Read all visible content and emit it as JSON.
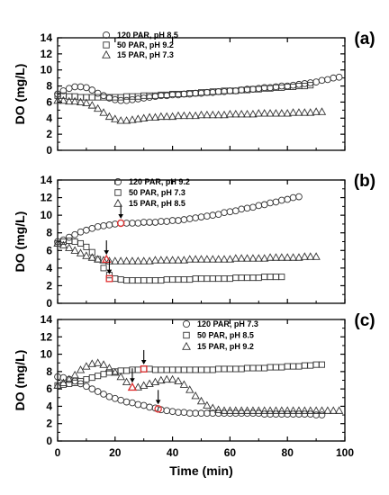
{
  "chart_data": [
    {
      "type": "scatter",
      "panel_label": "(a)",
      "ylabel": "DO (mg/L)",
      "xlim": [
        0,
        100
      ],
      "ylim": [
        0,
        14
      ],
      "yticks": [
        0,
        2,
        4,
        6,
        8,
        10,
        12,
        14
      ],
      "legend_position": "top-left",
      "series": [
        {
          "name": "120 PAR, pH 8.5",
          "marker": "circle",
          "x": [
            0,
            2,
            4,
            6,
            8,
            10,
            12,
            14,
            16,
            18,
            20,
            22,
            24,
            26,
            28,
            30,
            32,
            34,
            36,
            38,
            40,
            42,
            44,
            46,
            48,
            50,
            52,
            54,
            56,
            58,
            60,
            62,
            64,
            66,
            68,
            70,
            72,
            74,
            76,
            78,
            80,
            82,
            84,
            86,
            88,
            90,
            92,
            94,
            96,
            98
          ],
          "y": [
            7.0,
            7.4,
            7.7,
            7.9,
            7.9,
            7.8,
            7.5,
            7.1,
            6.8,
            6.5,
            6.3,
            6.2,
            6.2,
            6.3,
            6.4,
            6.5,
            6.6,
            6.7,
            6.8,
            6.8,
            6.9,
            6.9,
            7.0,
            7.0,
            7.1,
            7.1,
            7.2,
            7.2,
            7.3,
            7.3,
            7.4,
            7.4,
            7.5,
            7.6,
            7.6,
            7.7,
            7.8,
            7.8,
            7.9,
            8.0,
            8.0,
            8.1,
            8.2,
            8.3,
            8.4,
            8.5,
            8.7,
            8.8,
            9.0,
            9.1
          ]
        },
        {
          "name": "50 PAR, pH 9.2",
          "marker": "square",
          "x": [
            0,
            2,
            4,
            6,
            8,
            10,
            12,
            14,
            16,
            18,
            20,
            22,
            24,
            26,
            28,
            30,
            32,
            34,
            36,
            38,
            40,
            42,
            44,
            46,
            48,
            50,
            52,
            54,
            56,
            58,
            60,
            62,
            64,
            66,
            68,
            70,
            72,
            74,
            76,
            78,
            80,
            82,
            84,
            86,
            88
          ],
          "y": [
            6.8,
            6.8,
            6.7,
            6.7,
            6.6,
            6.6,
            6.6,
            6.6,
            6.6,
            6.6,
            6.6,
            6.6,
            6.7,
            6.7,
            6.7,
            6.8,
            6.8,
            6.8,
            6.9,
            6.9,
            7.0,
            7.0,
            7.0,
            7.1,
            7.1,
            7.2,
            7.2,
            7.3,
            7.3,
            7.4,
            7.4,
            7.4,
            7.5,
            7.5,
            7.6,
            7.6,
            7.7,
            7.7,
            7.8,
            7.8,
            7.9,
            7.9,
            8.0,
            8.0,
            8.1
          ]
        },
        {
          "name": "15 PAR, pH 7.3",
          "marker": "triangle",
          "x": [
            0,
            2,
            4,
            6,
            8,
            10,
            12,
            14,
            16,
            18,
            20,
            22,
            24,
            26,
            28,
            30,
            32,
            34,
            36,
            38,
            40,
            42,
            44,
            46,
            48,
            50,
            52,
            54,
            56,
            58,
            60,
            62,
            64,
            66,
            68,
            70,
            72,
            74,
            76,
            78,
            80,
            82,
            84,
            86,
            88,
            90,
            92
          ],
          "y": [
            6.2,
            6.2,
            6.1,
            6.1,
            6.0,
            5.9,
            5.6,
            5.2,
            4.7,
            4.2,
            3.9,
            3.7,
            3.7,
            3.8,
            3.9,
            4.0,
            4.1,
            4.1,
            4.2,
            4.2,
            4.2,
            4.3,
            4.3,
            4.3,
            4.3,
            4.4,
            4.4,
            4.4,
            4.4,
            4.4,
            4.5,
            4.5,
            4.5,
            4.5,
            4.5,
            4.6,
            4.6,
            4.6,
            4.6,
            4.6,
            4.6,
            4.7,
            4.7,
            4.7,
            4.7,
            4.8,
            4.8
          ]
        }
      ]
    },
    {
      "type": "scatter",
      "panel_label": "(b)",
      "ylabel": "DO (mg/L)",
      "xlim": [
        0,
        100
      ],
      "ylim": [
        0,
        14
      ],
      "yticks": [
        0,
        2,
        4,
        6,
        8,
        10,
        12,
        14
      ],
      "legend_position": "top-right",
      "series": [
        {
          "name": "120 PAR, pH 9.2",
          "marker": "circle",
          "x": [
            0,
            2,
            4,
            6,
            8,
            10,
            12,
            14,
            16,
            18,
            20,
            22,
            24,
            26,
            28,
            30,
            32,
            34,
            36,
            38,
            40,
            42,
            44,
            46,
            48,
            50,
            52,
            54,
            56,
            58,
            60,
            62,
            64,
            66,
            68,
            70,
            72,
            74,
            76,
            78,
            80,
            82,
            84
          ],
          "y": [
            7.0,
            7.2,
            7.5,
            7.8,
            8.1,
            8.3,
            8.5,
            8.7,
            8.8,
            8.9,
            9.0,
            9.1,
            9.1,
            9.1,
            9.1,
            9.2,
            9.2,
            9.2,
            9.3,
            9.3,
            9.4,
            9.4,
            9.5,
            9.6,
            9.7,
            9.8,
            9.9,
            10.0,
            10.1,
            10.3,
            10.4,
            10.5,
            10.7,
            10.8,
            10.9,
            11.1,
            11.2,
            11.4,
            11.5,
            11.7,
            11.8,
            12.0,
            12.1
          ]
        },
        {
          "name": "50 PAR, pH 7.3",
          "marker": "square",
          "x": [
            0,
            2,
            4,
            6,
            8,
            10,
            12,
            14,
            16,
            18,
            20,
            22,
            24,
            26,
            28,
            30,
            32,
            34,
            36,
            38,
            40,
            42,
            44,
            46,
            48,
            50,
            52,
            54,
            56,
            58,
            60,
            62,
            64,
            66,
            68,
            70,
            72,
            74,
            76,
            78
          ],
          "y": [
            6.8,
            7.0,
            7.1,
            7.0,
            6.8,
            6.4,
            5.8,
            5.0,
            4.0,
            3.2,
            2.8,
            2.7,
            2.6,
            2.6,
            2.6,
            2.6,
            2.6,
            2.6,
            2.6,
            2.7,
            2.7,
            2.7,
            2.7,
            2.7,
            2.8,
            2.8,
            2.8,
            2.8,
            2.8,
            2.8,
            2.8,
            2.9,
            2.9,
            2.9,
            2.9,
            2.9,
            3.0,
            3.0,
            3.0,
            3.0
          ]
        },
        {
          "name": "15 PAR, pH 8.5",
          "marker": "triangle",
          "x": [
            0,
            2,
            4,
            6,
            8,
            10,
            12,
            14,
            16,
            18,
            20,
            22,
            24,
            26,
            28,
            30,
            32,
            34,
            36,
            38,
            40,
            42,
            44,
            46,
            48,
            50,
            52,
            54,
            56,
            58,
            60,
            62,
            64,
            66,
            68,
            70,
            72,
            74,
            76,
            78,
            80,
            82,
            84,
            86,
            88,
            90
          ],
          "y": [
            6.8,
            6.6,
            6.3,
            6.0,
            5.7,
            5.4,
            5.2,
            5.0,
            4.9,
            4.8,
            4.8,
            4.8,
            4.8,
            4.8,
            4.8,
            4.8,
            4.8,
            4.9,
            4.9,
            4.9,
            4.9,
            4.9,
            4.9,
            5.0,
            5.0,
            5.0,
            5.0,
            5.0,
            5.0,
            5.0,
            5.0,
            5.1,
            5.1,
            5.1,
            5.1,
            5.1,
            5.1,
            5.2,
            5.2,
            5.2,
            5.2,
            5.2,
            5.2,
            5.3,
            5.3,
            5.3
          ]
        }
      ],
      "annotations": [
        {
          "x": 22,
          "y": 9.1,
          "series": "120 PAR, pH 9.2"
        },
        {
          "x": 17,
          "y": 5.0,
          "series": "15 PAR, pH 8.5"
        },
        {
          "x": 18,
          "y": 2.8,
          "series": "50 PAR, pH 7.3"
        }
      ]
    },
    {
      "type": "scatter",
      "panel_label": "(c)",
      "ylabel": "DO (mg/L)",
      "xlabel": "Time (min)",
      "xlim": [
        0,
        100
      ],
      "ylim": [
        0,
        14
      ],
      "xticks": [
        0,
        20,
        40,
        60,
        80,
        100
      ],
      "yticks": [
        0,
        2,
        4,
        6,
        8,
        10,
        12,
        14
      ],
      "legend_position": "top-right",
      "series": [
        {
          "name": "120 PAR, pH 7.3",
          "marker": "circle",
          "x": [
            0,
            2,
            4,
            6,
            8,
            10,
            12,
            14,
            16,
            18,
            20,
            22,
            24,
            26,
            28,
            30,
            32,
            34,
            36,
            38,
            40,
            42,
            44,
            46,
            48,
            50,
            52,
            54,
            56,
            58,
            60,
            62,
            64,
            66,
            68,
            70,
            72,
            74,
            76,
            78,
            80,
            82,
            84,
            86,
            88,
            90,
            92
          ],
          "y": [
            7.4,
            7.3,
            7.1,
            6.9,
            6.6,
            6.3,
            6.0,
            5.7,
            5.4,
            5.1,
            4.9,
            4.7,
            4.5,
            4.4,
            4.2,
            4.1,
            3.9,
            3.8,
            3.6,
            3.5,
            3.4,
            3.3,
            3.3,
            3.2,
            3.2,
            3.2,
            3.2,
            3.2,
            3.2,
            3.2,
            3.2,
            3.2,
            3.2,
            3.2,
            3.2,
            3.2,
            3.1,
            3.1,
            3.1,
            3.1,
            3.1,
            3.1,
            3.1,
            3.1,
            3.1,
            3.0,
            3.0
          ]
        },
        {
          "name": "50 PAR, pH 8.5",
          "marker": "square",
          "x": [
            0,
            2,
            4,
            6,
            8,
            10,
            12,
            14,
            16,
            18,
            20,
            22,
            24,
            26,
            28,
            30,
            32,
            34,
            36,
            38,
            40,
            42,
            44,
            46,
            48,
            50,
            52,
            54,
            56,
            58,
            60,
            62,
            64,
            66,
            68,
            70,
            72,
            74,
            76,
            78,
            80,
            82,
            84,
            86,
            88,
            90,
            92
          ],
          "y": [
            6.4,
            6.5,
            6.6,
            6.7,
            6.9,
            7.1,
            7.3,
            7.5,
            7.7,
            7.9,
            8.0,
            8.1,
            8.1,
            8.2,
            8.2,
            8.3,
            8.3,
            8.2,
            8.2,
            8.2,
            8.2,
            8.2,
            8.2,
            8.2,
            8.2,
            8.2,
            8.2,
            8.2,
            8.3,
            8.3,
            8.3,
            8.3,
            8.3,
            8.4,
            8.4,
            8.4,
            8.4,
            8.5,
            8.5,
            8.5,
            8.6,
            8.6,
            8.6,
            8.7,
            8.7,
            8.8,
            8.8
          ]
        },
        {
          "name": "15 PAR, pH 9.2",
          "marker": "triangle",
          "x": [
            0,
            2,
            4,
            6,
            8,
            10,
            12,
            14,
            16,
            18,
            20,
            22,
            24,
            26,
            28,
            30,
            32,
            34,
            36,
            38,
            40,
            42,
            44,
            46,
            48,
            50,
            52,
            54,
            56,
            58,
            60,
            62,
            64,
            66,
            68,
            70,
            72,
            74,
            76,
            78,
            80,
            82,
            84,
            86,
            88,
            90,
            92,
            94,
            96,
            98
          ],
          "y": [
            6.4,
            6.7,
            7.1,
            7.6,
            8.2,
            8.6,
            8.9,
            9.0,
            8.8,
            8.4,
            7.9,
            7.4,
            6.8,
            6.2,
            6.2,
            6.4,
            6.6,
            6.8,
            7.0,
            7.1,
            7.1,
            6.9,
            6.5,
            5.9,
            5.2,
            4.6,
            4.1,
            3.8,
            3.6,
            3.5,
            3.5,
            3.5,
            3.5,
            3.5,
            3.5,
            3.5,
            3.5,
            3.5,
            3.5,
            3.5,
            3.5,
            3.5,
            3.5,
            3.5,
            3.5,
            3.5,
            3.5,
            3.5,
            3.5,
            3.5
          ]
        }
      ],
      "annotations": [
        {
          "x": 30,
          "y": 8.3,
          "series": "50 PAR, pH 8.5"
        },
        {
          "x": 26,
          "y": 6.2,
          "series": "15 PAR, pH 9.2"
        },
        {
          "x": 35,
          "y": 3.7,
          "series": "120 PAR, pH 7.3"
        }
      ]
    }
  ],
  "colors": {
    "axis": "#000000",
    "marker_stroke": "#333333",
    "highlight": "#e03030",
    "background": "#ffffff"
  }
}
